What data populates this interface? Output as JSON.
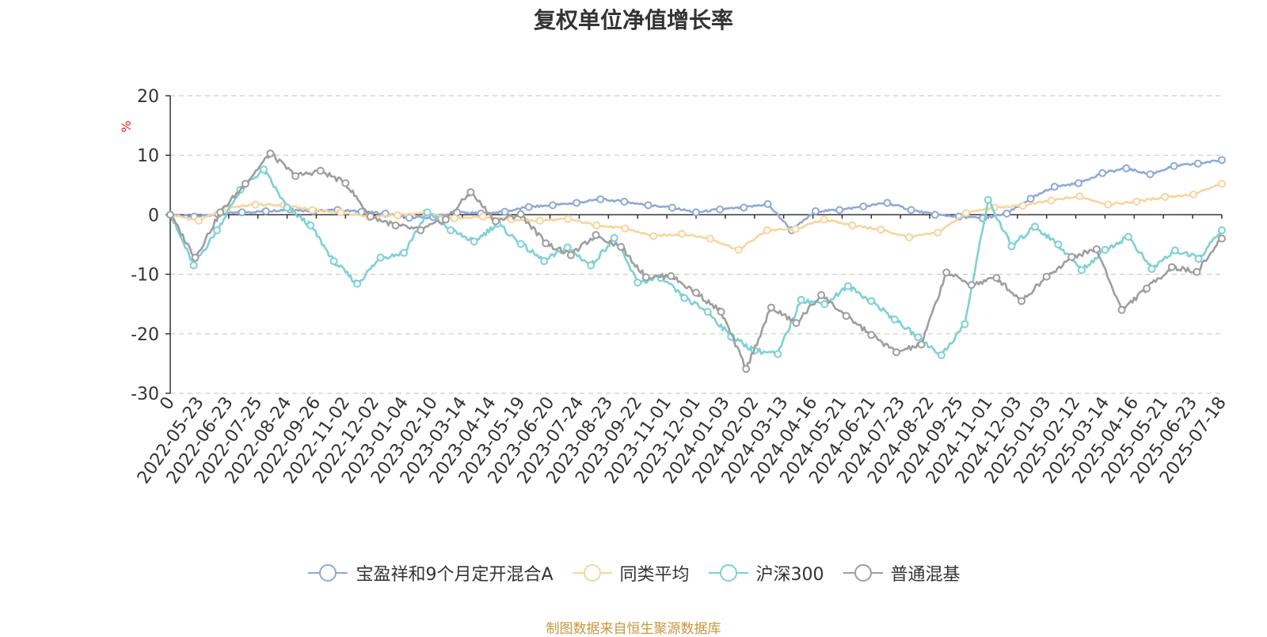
{
  "chart_data": {
    "type": "line",
    "title": "复权单位净值增长率",
    "ylabel": "%",
    "ylim": [
      -30,
      20
    ],
    "yticks": [
      "20",
      "10",
      "0",
      "-10",
      "-20",
      "-30"
    ],
    "xticks": [
      "0",
      "2022-05-23",
      "2022-06-23",
      "2022-07-25",
      "2022-08-24",
      "2022-09-26",
      "2022-11-02",
      "2022-12-02",
      "2023-01-04",
      "2023-02-10",
      "2023-03-14",
      "2023-04-14",
      "2023-05-19",
      "2023-06-20",
      "2023-07-24",
      "2023-08-23",
      "2023-09-22",
      "2023-11-01",
      "2023-12-01",
      "2024-01-03",
      "2024-02-02",
      "2024-03-13",
      "2024-04-16",
      "2024-05-21",
      "2024-06-21",
      "2024-07-23",
      "2024-08-22",
      "2024-09-25",
      "2024-11-01",
      "2024-12-03",
      "2025-01-03",
      "2025-02-12",
      "2025-03-14",
      "2025-04-16",
      "2025-05-21",
      "2025-06-23",
      "2025-07-18"
    ],
    "grid": true,
    "legend_position": "bottom",
    "series": [
      {
        "name": "宝盈祥和9个月定开混合A",
        "color": "#8fa9d7",
        "values": [
          0,
          -0.3,
          0.1,
          0.4,
          0.6,
          0.9,
          0.6,
          0.8,
          0.5,
          0.2,
          -0.5,
          -0.4,
          0.4,
          0.2,
          0.5,
          1.3,
          1.6,
          2.0,
          2.6,
          2.2,
          1.6,
          1.2,
          0.4,
          0.9,
          1.2,
          1.8,
          -2.6,
          0.6,
          0.8,
          1.4,
          2.0,
          0.8,
          0,
          -0.3,
          -0.6,
          0.2,
          2.7,
          4.7,
          5.3,
          7.0,
          7.8,
          6.8,
          8.2,
          8.6,
          9.2
        ]
      },
      {
        "name": "同类平均",
        "color": "#f9d49c",
        "values": [
          0,
          -1.0,
          1.2,
          1.7,
          1.6,
          0.8,
          0.4,
          -0.4,
          -0.1,
          0.3,
          -0.6,
          -0.3,
          -0.8,
          -1.0,
          -0.7,
          -1.8,
          -2.3,
          -3.6,
          -3.2,
          -4.0,
          -5.9,
          -2.6,
          -2.4,
          -0.8,
          -1.8,
          -2.5,
          -3.8,
          -3.0,
          0.3,
          1.2,
          1.5,
          2.4,
          3.1,
          1.7,
          2.2,
          3.0,
          3.4,
          5.2
        ]
      },
      {
        "name": "沪深300",
        "color": "#7ed1d3",
        "values": [
          0,
          -8.5,
          -2.6,
          4.2,
          7.6,
          1.2,
          -1.8,
          -7.8,
          -11.6,
          -7.2,
          -6.4,
          0.4,
          -2.6,
          -4.5,
          -1.5,
          -4.9,
          -7.8,
          -5.5,
          -8.5,
          -3.9,
          -11.4,
          -10.6,
          -14.0,
          -16.3,
          -20.5,
          -22.8,
          -23.4,
          -14.3,
          -15.0,
          -12.0,
          -14.5,
          -17.6,
          -20.6,
          -23.6,
          -18.4,
          2.5,
          -5.3,
          -2.0,
          -5.0,
          -9.3,
          -5.9,
          -3.7,
          -9.1,
          -6.0,
          -7.4,
          -2.6
        ]
      },
      {
        "name": "普通混基",
        "color": "#9e9e9e",
        "values": [
          0,
          -7.2,
          0.4,
          5.2,
          10.3,
          6.5,
          7.4,
          5.3,
          -0.3,
          -1.8,
          -2.6,
          -0.8,
          3.8,
          -1.1,
          0.1,
          -4.8,
          -6.8,
          -3.4,
          -5.4,
          -10.5,
          -10.3,
          -13.1,
          -16.3,
          -25.9,
          -15.6,
          -18.2,
          -13.5,
          -17.0,
          -20.2,
          -23.1,
          -21.8,
          -9.7,
          -11.8,
          -10.6,
          -14.5,
          -10.4,
          -7.1,
          -5.8,
          -16.0,
          -12.4,
          -8.8,
          -9.6,
          -4.0
        ]
      }
    ]
  },
  "source_note": "制图数据来自恒生聚源数据库"
}
